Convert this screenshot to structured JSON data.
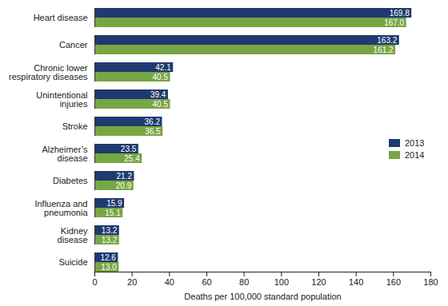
{
  "chart_data": {
    "type": "bar",
    "orientation": "horizontal",
    "categories": [
      "Heart disease",
      "Cancer",
      "Chronic lower\nrespiratory diseases",
      "Unintentional\ninjuries",
      "Stroke",
      "Alzheimer’s\ndisease",
      "Diabetes",
      "Influenza and\npneumonia",
      "Kidney\ndisease",
      "Suicide"
    ],
    "series": [
      {
        "name": "2013",
        "color": "#1f3a6e",
        "values": [
          169.8,
          163.2,
          42.1,
          39.4,
          36.2,
          23.5,
          21.2,
          15.9,
          13.2,
          12.6
        ],
        "value_labels": [
          "169.8",
          "163.2",
          "42.1",
          "39.4",
          "36.2",
          "23.5",
          "21.2",
          "15.9",
          "13.2",
          "12.6"
        ]
      },
      {
        "name": "2014",
        "color": "#77a644",
        "values": [
          167.0,
          161.2,
          40.5,
          40.5,
          36.5,
          25.4,
          20.9,
          15.1,
          13.2,
          13.0
        ],
        "value_labels": [
          "167.0",
          "161.2",
          "40.5",
          "40.5",
          "36.5",
          "25.4",
          "20.9",
          "15.1",
          "13.2",
          "13.0"
        ]
      }
    ],
    "xlabel": "Deaths per 100,000 standard population",
    "xlim": [
      0,
      180
    ],
    "xticks": [
      0,
      20,
      40,
      60,
      80,
      100,
      120,
      140,
      160,
      180
    ],
    "grid": false,
    "data_labels": true,
    "legend": "right"
  }
}
